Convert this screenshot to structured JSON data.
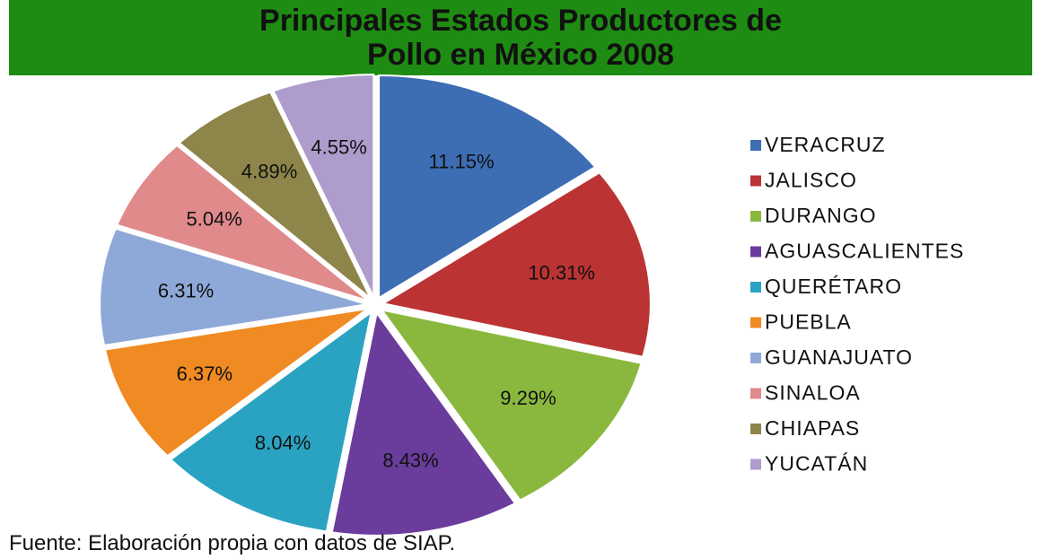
{
  "chart_data": {
    "type": "pie",
    "title": "Principales Estados Productores de Pollo en México 2008",
    "categories": [
      "VERACRUZ",
      "JALISCO",
      "DURANGO",
      "AGUASCALIENTES",
      "QUERÉTARO",
      "PUEBLA",
      "GUANAJUATO",
      "SINALOA",
      "CHIAPAS",
      "YUCATÁN"
    ],
    "values": [
      11.15,
      10.31,
      9.29,
      8.43,
      8.04,
      6.37,
      6.31,
      5.04,
      4.89,
      4.55
    ],
    "value_labels": [
      "11.15%",
      "10.31%",
      "9.29%",
      "8.43%",
      "8.04%",
      "6.37%",
      "6.31%",
      "5.04%",
      "4.89%",
      "4.55%"
    ],
    "colors": [
      "#3d6db3",
      "#bb3333",
      "#8ab83e",
      "#6a3c9c",
      "#2aa3c2",
      "#f08a22",
      "#8ea9d8",
      "#e08a8c",
      "#8d8549",
      "#ad9ccc"
    ],
    "legend": "right",
    "source": "Fuente: Elaboración propia con datos de SIAP."
  }
}
